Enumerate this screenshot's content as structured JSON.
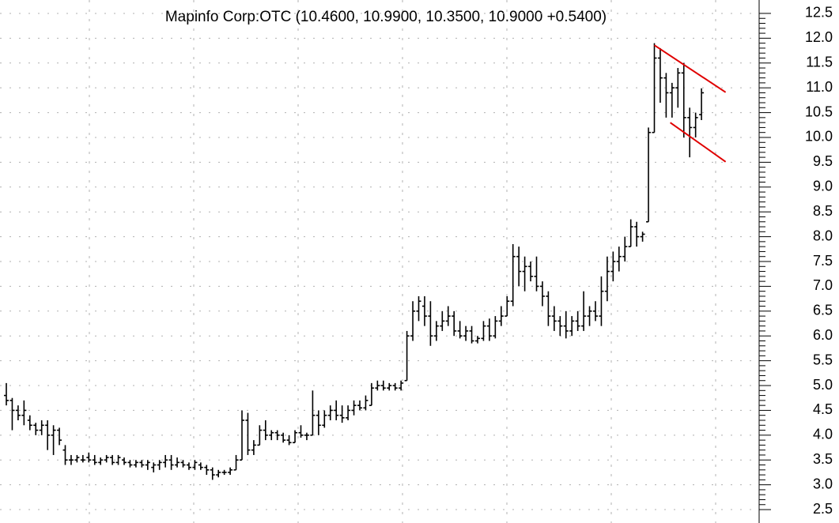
{
  "chart_data": {
    "type": "ohlc",
    "title": "Mapinfo Corp:OTC (10.4600, 10.9900, 10.3500, 10.9000 +0.5400)",
    "color": "#000000",
    "ylim": [
      2.23,
      12.77
    ],
    "yticks": [
      2.5,
      {
        "value": 3,
        "label": "3.0"
      },
      3.5,
      {
        "value": 4,
        "label": "4.0"
      },
      4.5,
      {
        "value": 5,
        "label": "5.0"
      },
      5.5,
      {
        "value": 6,
        "label": "6.0"
      },
      6.5,
      {
        "value": 7,
        "label": "7.0"
      },
      7.5,
      {
        "value": 8,
        "label": "8.0"
      },
      8.5,
      {
        "value": 9,
        "label": "9.0"
      },
      9.5,
      {
        "value": 10,
        "label": "10.0"
      },
      10.5,
      {
        "value": 11,
        "label": "11.0"
      },
      11.5,
      {
        "value": 12,
        "label": "12.0"
      },
      12.5
    ],
    "grid": true,
    "values": [
      [
        4.8,
        5.05,
        4.6,
        4.7
      ],
      [
        4.7,
        4.75,
        4.1,
        4.5
      ],
      [
        4.5,
        4.6,
        4.3,
        4.4
      ],
      [
        4.4,
        4.7,
        4.2,
        4.5
      ],
      [
        4.3,
        4.4,
        4.1,
        4.2
      ],
      [
        4.2,
        4.25,
        4.0,
        4.1
      ],
      [
        4.1,
        4.3,
        4.0,
        4.2
      ],
      [
        4.2,
        4.3,
        3.7,
        4.0
      ],
      [
        4.0,
        4.2,
        3.6,
        4.1
      ],
      [
        4.1,
        4.15,
        3.8,
        3.9
      ],
      [
        3.7,
        3.8,
        3.4,
        3.5
      ],
      [
        3.5,
        3.6,
        3.4,
        3.5
      ],
      [
        3.5,
        3.6,
        3.45,
        3.55
      ],
      [
        3.5,
        3.6,
        3.45,
        3.5
      ],
      [
        3.55,
        3.65,
        3.45,
        3.5
      ],
      [
        3.5,
        3.6,
        3.4,
        3.45
      ],
      [
        3.45,
        3.55,
        3.4,
        3.5
      ],
      [
        3.5,
        3.6,
        3.45,
        3.55
      ],
      [
        3.55,
        3.6,
        3.4,
        3.45
      ],
      [
        3.45,
        3.6,
        3.4,
        3.55
      ],
      [
        3.5,
        3.55,
        3.4,
        3.45
      ],
      [
        3.45,
        3.5,
        3.35,
        3.4
      ],
      [
        3.4,
        3.5,
        3.35,
        3.45
      ],
      [
        3.45,
        3.5,
        3.35,
        3.4
      ],
      [
        3.4,
        3.5,
        3.3,
        3.45
      ],
      [
        3.35,
        3.45,
        3.25,
        3.4
      ],
      [
        3.4,
        3.5,
        3.3,
        3.45
      ],
      [
        3.45,
        3.6,
        3.35,
        3.5
      ],
      [
        3.5,
        3.6,
        3.3,
        3.4
      ],
      [
        3.4,
        3.55,
        3.35,
        3.45
      ],
      [
        3.45,
        3.5,
        3.35,
        3.4
      ],
      [
        3.4,
        3.45,
        3.3,
        3.35
      ],
      [
        3.35,
        3.5,
        3.3,
        3.45
      ],
      [
        3.4,
        3.45,
        3.3,
        3.35
      ],
      [
        3.35,
        3.4,
        3.2,
        3.3
      ],
      [
        3.3,
        3.35,
        3.1,
        3.2
      ],
      [
        3.2,
        3.3,
        3.15,
        3.25
      ],
      [
        3.25,
        3.3,
        3.2,
        3.25
      ],
      [
        3.25,
        3.35,
        3.2,
        3.3
      ],
      [
        3.3,
        3.6,
        3.3,
        3.5
      ],
      [
        3.5,
        4.5,
        3.5,
        4.3
      ],
      [
        4.3,
        4.45,
        3.6,
        3.7
      ],
      [
        3.7,
        3.9,
        3.6,
        3.8
      ],
      [
        3.8,
        4.2,
        3.8,
        4.1
      ],
      [
        4.1,
        4.3,
        3.9,
        4.0
      ],
      [
        4.0,
        4.1,
        3.9,
        4.05
      ],
      [
        4.05,
        4.1,
        3.9,
        4.0
      ],
      [
        4.0,
        4.05,
        3.85,
        3.9
      ],
      [
        3.9,
        4.0,
        3.8,
        3.85
      ],
      [
        3.85,
        4.1,
        3.85,
        4.05
      ],
      [
        4.05,
        4.2,
        3.95,
        4.0
      ],
      [
        4.0,
        4.05,
        3.9,
        4.0
      ],
      [
        4.0,
        4.9,
        4.0,
        4.4
      ],
      [
        4.4,
        4.5,
        4.0,
        4.2
      ],
      [
        4.2,
        4.5,
        4.15,
        4.4
      ],
      [
        4.4,
        4.6,
        4.3,
        4.5
      ],
      [
        4.5,
        4.7,
        4.3,
        4.4
      ],
      [
        4.4,
        4.6,
        4.25,
        4.35
      ],
      [
        4.35,
        4.6,
        4.3,
        4.5
      ],
      [
        4.5,
        4.7,
        4.4,
        4.6
      ],
      [
        4.6,
        4.7,
        4.5,
        4.55
      ],
      [
        4.55,
        4.8,
        4.5,
        4.7
      ],
      [
        4.6,
        5.05,
        4.6,
        4.95
      ],
      [
        4.95,
        5.1,
        4.9,
        5.0
      ],
      [
        5.0,
        5.1,
        4.9,
        4.95
      ],
      [
        4.95,
        5.05,
        4.9,
        5.0
      ],
      [
        5.0,
        5.05,
        4.9,
        4.95
      ],
      [
        4.95,
        5.1,
        4.9,
        5.05
      ],
      [
        5.1,
        6.1,
        5.1,
        6.0
      ],
      [
        6.0,
        6.7,
        5.9,
        6.5
      ],
      [
        6.5,
        6.8,
        6.3,
        6.7
      ],
      [
        6.6,
        6.8,
        6.2,
        6.4
      ],
      [
        6.4,
        6.7,
        5.8,
        6.0
      ],
      [
        6.0,
        6.3,
        5.9,
        6.2
      ],
      [
        6.2,
        6.5,
        6.1,
        6.3
      ],
      [
        6.3,
        6.6,
        6.2,
        6.4
      ],
      [
        6.4,
        6.5,
        6.0,
        6.1
      ],
      [
        6.1,
        6.3,
        5.95,
        6.0
      ],
      [
        6.0,
        6.2,
        5.9,
        6.1
      ],
      [
        6.1,
        6.2,
        5.85,
        5.9
      ],
      [
        5.9,
        6.0,
        5.85,
        5.95
      ],
      [
        5.95,
        6.3,
        5.9,
        6.2
      ],
      [
        6.2,
        6.35,
        5.9,
        6.0
      ],
      [
        6.0,
        6.4,
        5.95,
        6.3
      ],
      [
        6.3,
        6.6,
        6.2,
        6.4
      ],
      [
        6.4,
        6.8,
        6.4,
        6.7
      ],
      [
        6.7,
        7.85,
        6.6,
        7.6
      ],
      [
        7.6,
        7.8,
        7.0,
        7.3
      ],
      [
        7.3,
        7.6,
        6.9,
        7.4
      ],
      [
        7.4,
        7.5,
        7.1,
        7.2
      ],
      [
        7.2,
        7.6,
        6.9,
        7.0
      ],
      [
        7.0,
        7.1,
        6.6,
        6.8
      ],
      [
        6.8,
        6.9,
        6.2,
        6.4
      ],
      [
        6.4,
        6.6,
        6.1,
        6.3
      ],
      [
        6.3,
        6.4,
        6.0,
        6.2
      ],
      [
        6.2,
        6.5,
        5.95,
        6.1
      ],
      [
        6.1,
        6.4,
        6.0,
        6.3
      ],
      [
        6.3,
        6.5,
        6.1,
        6.2
      ],
      [
        6.2,
        6.9,
        6.1,
        6.4
      ],
      [
        6.4,
        6.6,
        6.2,
        6.5
      ],
      [
        6.5,
        6.7,
        6.3,
        6.4
      ],
      [
        6.4,
        7.2,
        6.2,
        6.9
      ],
      [
        6.9,
        7.6,
        6.7,
        7.3
      ],
      [
        7.3,
        7.7,
        7.1,
        7.5
      ],
      [
        7.5,
        7.8,
        7.3,
        7.6
      ],
      [
        7.6,
        8.0,
        7.5,
        7.8
      ],
      [
        7.8,
        8.35,
        7.8,
        8.2
      ],
      [
        8.2,
        8.3,
        7.8,
        8.0
      ],
      [
        8.0,
        8.1,
        7.9,
        8.05
      ],
      [
        8.3,
        10.2,
        8.3,
        10.1
      ],
      [
        10.1,
        11.9,
        10.1,
        11.6
      ],
      [
        11.6,
        11.8,
        10.7,
        11.2
      ],
      [
        11.2,
        11.3,
        10.4,
        10.9
      ],
      [
        10.9,
        11.1,
        10.4,
        11.0
      ],
      [
        11.0,
        11.4,
        10.6,
        11.3
      ],
      [
        11.3,
        11.5,
        10.0,
        10.4
      ],
      [
        10.4,
        10.6,
        9.6,
        10.2
      ],
      [
        10.2,
        10.5,
        10.0,
        10.4
      ],
      [
        10.46,
        10.99,
        10.35,
        10.9
      ]
    ],
    "trendlines": [
      {
        "color": "#e00000",
        "x": [
          110,
          122.1
        ],
        "y": [
          11.86,
          10.91
        ]
      },
      {
        "color": "#e00000",
        "x": [
          112.7,
          122.1
        ],
        "y": [
          10.3,
          9.51
        ]
      }
    ]
  }
}
